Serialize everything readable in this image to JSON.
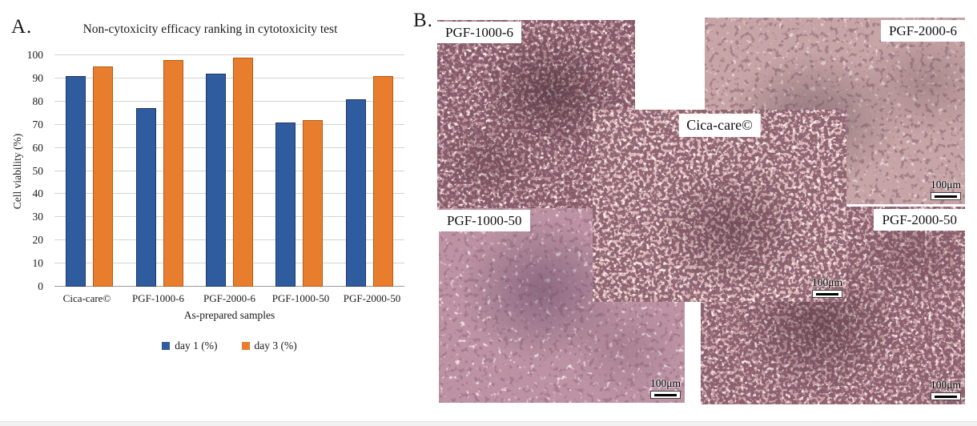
{
  "figure": {
    "panel_a_label": "A.",
    "panel_b_label": "B."
  },
  "chart_data": {
    "type": "bar",
    "title": "Non-cytoxicity efficacy ranking in cytotoxicity test",
    "xlabel": "As-prepared samples",
    "ylabel": "Cell viability  (%)",
    "ylim": [
      0,
      100
    ],
    "ytick_step": 10,
    "grid": true,
    "legend_position": "bottom",
    "categories": [
      "Cica-care©",
      "PGF-1000-6",
      "PGF-2000-6",
      "PGF-1000-50",
      "PGF-2000-50"
    ],
    "series": [
      {
        "name": "day 1 (%)",
        "color": "#2E5C9E",
        "border": "#1F3864",
        "values": [
          91,
          77,
          92,
          71,
          81
        ]
      },
      {
        "name": "day 3 (%)",
        "color": "#E87D2E",
        "border": "#B65A17",
        "values": [
          95,
          98,
          99,
          72,
          91
        ]
      }
    ]
  },
  "micrographs": [
    {
      "label": "PGF-1000-6",
      "scale_bar": ""
    },
    {
      "label": "PGF-2000-6",
      "scale_bar": "100μm"
    },
    {
      "label": "Cica-care©",
      "scale_bar": "100μm"
    },
    {
      "label": "PGF-1000-50",
      "scale_bar": "100μm"
    },
    {
      "label": "PGF-2000-50",
      "scale_bar": "100μm"
    }
  ]
}
